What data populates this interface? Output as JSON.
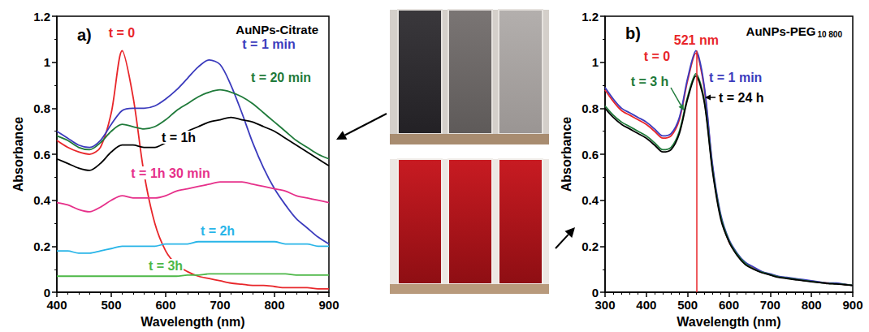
{
  "chart_data": [
    {
      "type": "line",
      "panel": "a)",
      "title": "AuNPs-Citrate",
      "x_label": "Wavelength (nm)",
      "y_label": "Absorbance",
      "xlim": [
        400,
        900
      ],
      "xticks": [
        400,
        500,
        600,
        700,
        800,
        900
      ],
      "ylim": [
        0,
        1.2
      ],
      "yticks": [
        0,
        0.2,
        0.4,
        0.6,
        0.8,
        1,
        1.2
      ],
      "grid": false,
      "x": [
        400,
        420,
        440,
        460,
        480,
        500,
        520,
        540,
        560,
        580,
        600,
        620,
        640,
        660,
        680,
        700,
        720,
        740,
        760,
        780,
        800,
        820,
        840,
        860,
        880,
        900
      ],
      "series": [
        {
          "name": "t = 0",
          "color": "#e8262a",
          "values": [
            0.66,
            0.63,
            0.61,
            0.6,
            0.63,
            0.78,
            1.05,
            0.85,
            0.52,
            0.3,
            0.18,
            0.12,
            0.09,
            0.07,
            0.06,
            0.05,
            0.04,
            0.035,
            0.03,
            0.03,
            0.025,
            0.02,
            0.02,
            0.02,
            0.015,
            0.015
          ]
        },
        {
          "name": "t = 1 min",
          "color": "#3b3bbd",
          "values": [
            0.7,
            0.67,
            0.64,
            0.63,
            0.66,
            0.73,
            0.79,
            0.8,
            0.8,
            0.81,
            0.84,
            0.88,
            0.93,
            0.98,
            1.01,
            0.99,
            0.9,
            0.78,
            0.65,
            0.54,
            0.45,
            0.38,
            0.32,
            0.28,
            0.24,
            0.21
          ]
        },
        {
          "name": "t = 20 min",
          "color": "#1f7a3a",
          "values": [
            0.68,
            0.66,
            0.63,
            0.62,
            0.65,
            0.7,
            0.73,
            0.72,
            0.71,
            0.72,
            0.75,
            0.79,
            0.82,
            0.85,
            0.87,
            0.88,
            0.87,
            0.85,
            0.82,
            0.78,
            0.74,
            0.7,
            0.66,
            0.63,
            0.6,
            0.58
          ]
        },
        {
          "name": "t = 1h",
          "color": "#000000",
          "values": [
            0.58,
            0.56,
            0.54,
            0.53,
            0.56,
            0.61,
            0.64,
            0.64,
            0.63,
            0.63,
            0.65,
            0.67,
            0.7,
            0.72,
            0.74,
            0.75,
            0.76,
            0.75,
            0.74,
            0.72,
            0.7,
            0.67,
            0.64,
            0.61,
            0.58,
            0.55
          ]
        },
        {
          "name": "t = 1h 30 min",
          "color": "#e6308a",
          "values": [
            0.39,
            0.38,
            0.36,
            0.35,
            0.37,
            0.4,
            0.42,
            0.41,
            0.41,
            0.41,
            0.42,
            0.44,
            0.45,
            0.46,
            0.47,
            0.48,
            0.48,
            0.48,
            0.47,
            0.46,
            0.45,
            0.44,
            0.42,
            0.41,
            0.4,
            0.39
          ]
        },
        {
          "name": "t = 2h",
          "color": "#29b5e8",
          "values": [
            0.18,
            0.18,
            0.17,
            0.17,
            0.18,
            0.19,
            0.2,
            0.2,
            0.2,
            0.2,
            0.21,
            0.21,
            0.21,
            0.22,
            0.22,
            0.22,
            0.22,
            0.22,
            0.22,
            0.22,
            0.22,
            0.21,
            0.21,
            0.21,
            0.2,
            0.2
          ]
        },
        {
          "name": "t = 3h",
          "color": "#4db848",
          "values": [
            0.07,
            0.07,
            0.07,
            0.07,
            0.07,
            0.07,
            0.07,
            0.07,
            0.07,
            0.07,
            0.07,
            0.07,
            0.075,
            0.075,
            0.08,
            0.08,
            0.08,
            0.08,
            0.08,
            0.08,
            0.08,
            0.08,
            0.075,
            0.075,
            0.075,
            0.075
          ]
        }
      ]
    },
    {
      "type": "line",
      "panel": "b)",
      "title": "AuNPs-PEG",
      "title_subscript": "10 800",
      "x_label": "Wavelength (nm)",
      "y_label": "Absorbance",
      "xlim": [
        300,
        900
      ],
      "xticks": [
        300,
        400,
        500,
        600,
        700,
        800,
        900
      ],
      "ylim": [
        0,
        1.2
      ],
      "yticks": [
        0,
        0.2,
        0.4,
        0.6,
        0.8,
        1,
        1.2
      ],
      "grid": false,
      "annotations": [
        {
          "x": 521,
          "label": "521 nm",
          "color": "#e8262a"
        }
      ],
      "x": [
        300,
        320,
        340,
        360,
        380,
        400,
        420,
        440,
        460,
        480,
        500,
        520,
        540,
        560,
        580,
        600,
        620,
        640,
        660,
        680,
        700,
        720,
        740,
        760,
        780,
        800,
        820,
        840,
        860,
        880,
        900
      ],
      "series": [
        {
          "name": "t = 0",
          "color": "#e8262a",
          "values": [
            0.88,
            0.83,
            0.79,
            0.77,
            0.75,
            0.73,
            0.7,
            0.67,
            0.68,
            0.75,
            0.92,
            1.04,
            0.89,
            0.55,
            0.33,
            0.22,
            0.165,
            0.125,
            0.105,
            0.088,
            0.078,
            0.068,
            0.063,
            0.058,
            0.053,
            0.048,
            0.044,
            0.04,
            0.038,
            0.034,
            0.03
          ]
        },
        {
          "name": "t = 1 min",
          "color": "#3b3bbd",
          "values": [
            0.89,
            0.84,
            0.8,
            0.78,
            0.76,
            0.74,
            0.71,
            0.68,
            0.69,
            0.76,
            0.93,
            1.05,
            0.9,
            0.56,
            0.34,
            0.23,
            0.17,
            0.13,
            0.11,
            0.09,
            0.08,
            0.07,
            0.065,
            0.06,
            0.055,
            0.05,
            0.045,
            0.04,
            0.04,
            0.035,
            0.03
          ]
        },
        {
          "name": "t = 3 h",
          "color": "#1f7a3a",
          "values": [
            0.81,
            0.77,
            0.74,
            0.72,
            0.7,
            0.68,
            0.65,
            0.62,
            0.63,
            0.7,
            0.85,
            0.95,
            0.84,
            0.54,
            0.33,
            0.225,
            0.165,
            0.125,
            0.102,
            0.087,
            0.077,
            0.067,
            0.062,
            0.057,
            0.052,
            0.047,
            0.043,
            0.039,
            0.037,
            0.034,
            0.03
          ]
        },
        {
          "name": "t = 24 h",
          "color": "#000000",
          "values": [
            0.8,
            0.76,
            0.73,
            0.71,
            0.69,
            0.67,
            0.64,
            0.61,
            0.62,
            0.69,
            0.84,
            0.94,
            0.83,
            0.53,
            0.32,
            0.22,
            0.16,
            0.12,
            0.1,
            0.085,
            0.075,
            0.065,
            0.06,
            0.055,
            0.05,
            0.046,
            0.042,
            0.038,
            0.036,
            0.033,
            0.03
          ]
        }
      ]
    }
  ]
}
